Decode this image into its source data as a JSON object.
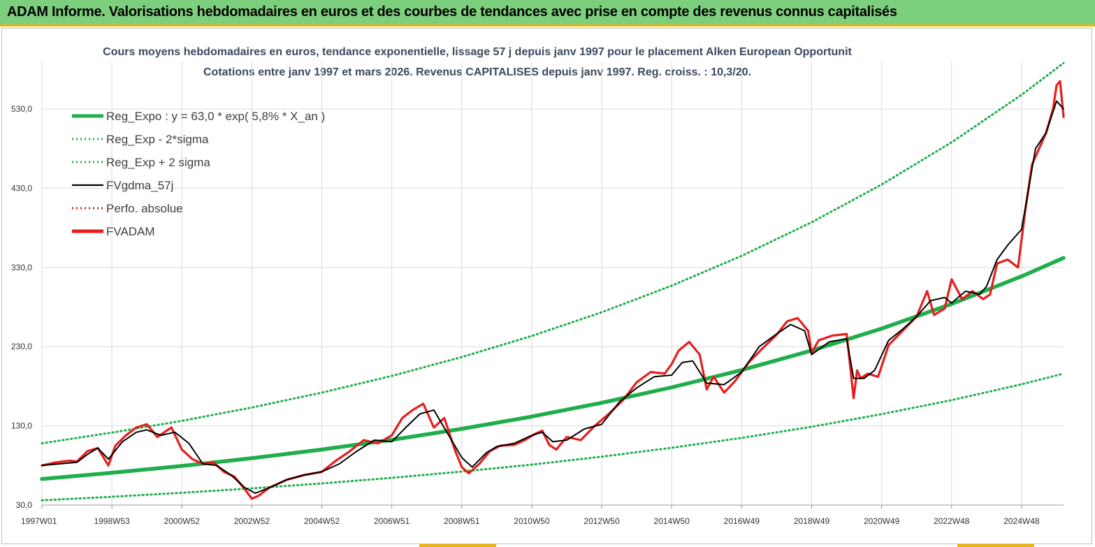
{
  "banner": {
    "title": "ADAM Informe. Valorisations hebdomadaires en euros et des courbes de tendances avec prise en compte des revenus connus capitalisés"
  },
  "chart_data": {
    "type": "line",
    "title": "Cours moyens hebdomadaires en euros, tendance exponentielle, lissage 57 j depuis janv 1997  pour le placement Alken European Opportunit",
    "subtitle": "Cotations entre janv 1997 et mars 2026. Revenus CAPITALISES depuis janv 1997. Reg. croiss. : 10,3/20.",
    "xlabel": "",
    "ylabel": "",
    "x_range": [
      1997.0,
      2026.2
    ],
    "ylim": [
      30,
      590
    ],
    "y_ticks": [
      30,
      130,
      230,
      330,
      430,
      530
    ],
    "y_tick_labels": [
      "30,0",
      "130,0",
      "230,0",
      "330,0",
      "430,0",
      "530,0"
    ],
    "x_ticks": [
      {
        "x": 1997.0,
        "label": "1997W01"
      },
      {
        "x": 1999.0,
        "label": "1998W53"
      },
      {
        "x": 2001.0,
        "label": "2000W52"
      },
      {
        "x": 2003.0,
        "label": "2002W52"
      },
      {
        "x": 2005.0,
        "label": "2004W52"
      },
      {
        "x": 2007.0,
        "label": "2006W51"
      },
      {
        "x": 2009.0,
        "label": "2008W51"
      },
      {
        "x": 2011.0,
        "label": "2010W50"
      },
      {
        "x": 2013.0,
        "label": "2012W50"
      },
      {
        "x": 2015.0,
        "label": "2014W50"
      },
      {
        "x": 2017.0,
        "label": "2016W49"
      },
      {
        "x": 2019.0,
        "label": "2018W49"
      },
      {
        "x": 2021.0,
        "label": "2020W49"
      },
      {
        "x": 2023.0,
        "label": "2022W48"
      },
      {
        "x": 2025.0,
        "label": "2024W48"
      }
    ],
    "grid": "vertical and horizontal",
    "legend_position": "top-left",
    "legend": [
      {
        "label": "Reg_Expo : y = 63,0 * exp( 5,8% *  X_an )",
        "color": "#1fae4b",
        "style": "solid-thick"
      },
      {
        "label": "Reg_Exp - 2*sigma",
        "color": "#1fae4b",
        "style": "dotted"
      },
      {
        "label": "Reg_Exp + 2 sigma",
        "color": "#1fae4b",
        "style": "dotted"
      },
      {
        "label": "FVgdma_57j",
        "color": "#000000",
        "style": "solid"
      },
      {
        "label": "Perfo. absolue",
        "color": "#e0201b",
        "style": "dotted"
      },
      {
        "label": "FVADAM",
        "color": "#e61e1e",
        "style": "solid-thick"
      }
    ],
    "series": [
      {
        "name": "Reg_Expo : y = 63,0 * exp( 5,8% *  X_an )",
        "color": "#1fae4b",
        "x": [
          1997,
          1999,
          2001,
          2003,
          2005,
          2007,
          2009,
          2011,
          2013,
          2015,
          2017,
          2019,
          2021,
          2023,
          2025,
          2026.2
        ],
        "values": [
          63,
          70.7,
          79.4,
          89.2,
          100.1,
          112.4,
          126.2,
          141.7,
          159.1,
          178.6,
          200.5,
          225.2,
          252.8,
          283.9,
          318.7,
          342
        ]
      },
      {
        "name": "Reg_Exp - 2*sigma",
        "color": "#1fae4b",
        "x": [
          1997,
          1999,
          2001,
          2003,
          2005,
          2007,
          2009,
          2011,
          2013,
          2015,
          2017,
          2019,
          2021,
          2023,
          2025,
          2026.2
        ],
        "values": [
          36,
          40.5,
          45.5,
          51.1,
          57.3,
          64.4,
          72.3,
          81.1,
          91.1,
          102.3,
          114.8,
          128.9,
          144.8,
          162.5,
          182.5,
          196
        ]
      },
      {
        "name": "Reg_Exp + 2 sigma",
        "color": "#1fae4b",
        "x": [
          1997,
          1999,
          2001,
          2003,
          2005,
          2007,
          2009,
          2011,
          2013,
          2015,
          2017,
          2019,
          2021,
          2023,
          2025,
          2026.2
        ],
        "values": [
          108,
          121.5,
          136.4,
          153.2,
          172,
          193.1,
          216.9,
          243.5,
          273.4,
          307,
          344.7,
          387,
          434.6,
          488,
          547.9,
          588
        ]
      },
      {
        "name": "FVgdma_57j",
        "color": "#000000",
        "x": [
          1997.0,
          1997.5,
          1998.0,
          1998.3,
          1998.6,
          1998.9,
          1999.3,
          1999.7,
          2000.0,
          2000.4,
          2000.8,
          2001.2,
          2001.6,
          2002.0,
          2002.4,
          2002.8,
          2003.1,
          2003.5,
          2004.0,
          2004.5,
          2005.0,
          2005.5,
          2006.0,
          2006.5,
          2007.0,
          2007.4,
          2007.8,
          2008.2,
          2008.6,
          2009.0,
          2009.3,
          2009.7,
          2010.0,
          2010.5,
          2011.0,
          2011.3,
          2011.6,
          2012.0,
          2012.5,
          2013.0,
          2013.5,
          2014.0,
          2014.5,
          2015.0,
          2015.3,
          2015.6,
          2016.0,
          2016.5,
          2017.0,
          2017.5,
          2018.0,
          2018.4,
          2018.8,
          2019.0,
          2019.5,
          2020.0,
          2020.2,
          2020.5,
          2020.8,
          2021.2,
          2021.6,
          2022.0,
          2022.4,
          2022.8,
          2023.0,
          2023.4,
          2023.8,
          2024.0,
          2024.3,
          2024.6,
          2025.0,
          2025.4,
          2025.7,
          2026.0,
          2026.2
        ],
        "values": [
          80,
          82,
          84,
          94,
          102,
          88,
          110,
          122,
          125,
          118,
          122,
          108,
          82,
          80,
          68,
          52,
          45,
          52,
          62,
          68,
          72,
          82,
          98,
          112,
          110,
          128,
          145,
          150,
          120,
          90,
          78,
          96,
          104,
          108,
          118,
          122,
          110,
          112,
          126,
          132,
          160,
          178,
          192,
          194,
          210,
          212,
          184,
          182,
          198,
          230,
          246,
          258,
          250,
          220,
          236,
          240,
          190,
          190,
          200,
          238,
          252,
          268,
          288,
          292,
          285,
          300,
          296,
          306,
          340,
          358,
          378,
          480,
          500,
          540,
          530
        ]
      },
      {
        "name": "FVADAM",
        "color": "#e61e1e",
        "x": [
          1997.0,
          1997.4,
          1997.8,
          1998.0,
          1998.3,
          1998.6,
          1998.9,
          1999.1,
          1999.4,
          1999.7,
          2000.0,
          2000.3,
          2000.7,
          2001.0,
          2001.3,
          2001.6,
          2001.9,
          2002.2,
          2002.5,
          2002.8,
          2003.0,
          2003.2,
          2003.5,
          2004.0,
          2004.5,
          2005.0,
          2005.4,
          2005.8,
          2006.2,
          2006.6,
          2007.0,
          2007.3,
          2007.6,
          2007.9,
          2008.2,
          2008.5,
          2008.8,
          2009.0,
          2009.2,
          2009.5,
          2009.8,
          2010.1,
          2010.5,
          2010.8,
          2011.1,
          2011.3,
          2011.5,
          2011.7,
          2012.0,
          2012.4,
          2012.8,
          2013.2,
          2013.6,
          2014.0,
          2014.4,
          2014.8,
          2015.0,
          2015.2,
          2015.5,
          2015.8,
          2016.0,
          2016.2,
          2016.5,
          2016.8,
          2017.2,
          2017.6,
          2018.0,
          2018.3,
          2018.6,
          2018.9,
          2019.0,
          2019.2,
          2019.6,
          2020.0,
          2020.2,
          2020.3,
          2020.4,
          2020.6,
          2020.9,
          2021.2,
          2021.6,
          2022.0,
          2022.3,
          2022.5,
          2022.8,
          2023.0,
          2023.3,
          2023.6,
          2023.9,
          2024.1,
          2024.3,
          2024.6,
          2024.9,
          2025.1,
          2025.3,
          2025.5,
          2025.7,
          2025.9,
          2026.0,
          2026.1,
          2026.2
        ],
        "values": [
          80,
          84,
          86,
          85,
          98,
          102,
          80,
          105,
          118,
          128,
          132,
          116,
          128,
          100,
          88,
          82,
          84,
          72,
          66,
          50,
          38,
          42,
          52,
          62,
          68,
          72,
          86,
          98,
          112,
          108,
          118,
          140,
          150,
          158,
          128,
          140,
          100,
          78,
          70,
          82,
          98,
          105,
          106,
          112,
          120,
          124,
          106,
          100,
          116,
          112,
          130,
          145,
          162,
          185,
          198,
          196,
          208,
          225,
          236,
          220,
          176,
          192,
          172,
          186,
          210,
          228,
          245,
          262,
          266,
          250,
          222,
          238,
          244,
          246,
          165,
          200,
          190,
          196,
          192,
          232,
          250,
          268,
          300,
          270,
          278,
          315,
          290,
          300,
          290,
          296,
          335,
          340,
          330,
          400,
          460,
          480,
          500,
          530,
          560,
          565,
          520
        ]
      }
    ]
  }
}
